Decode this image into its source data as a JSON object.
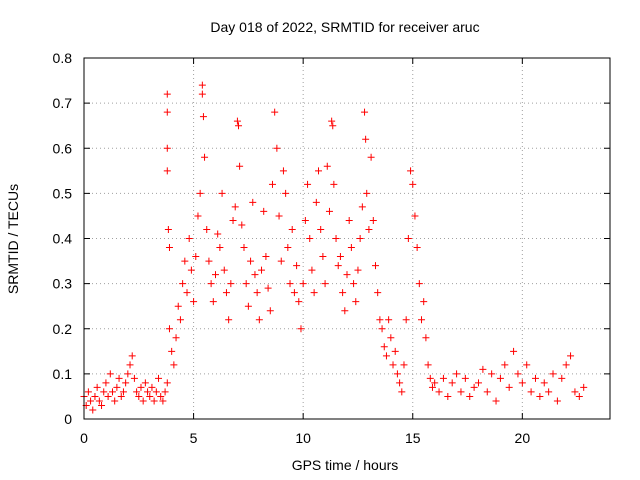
{
  "chart_data": {
    "type": "scatter",
    "title": "Day 018 of 2022, SRMTID for receiver aruc",
    "xlabel": "GPS time / hours",
    "ylabel": "SRMTID / TECUs",
    "xlim": [
      0,
      24
    ],
    "ylim": [
      0,
      0.8
    ],
    "xticks": [
      0,
      5,
      10,
      15,
      20
    ],
    "yticks": [
      0,
      0.1,
      0.2,
      0.3,
      0.4,
      0.5,
      0.6,
      0.7,
      0.8
    ],
    "xtick_labels": [
      "0",
      "5",
      "10",
      "15",
      "20"
    ],
    "ytick_labels": [
      "0",
      "0.1",
      "0.2",
      "0.3",
      "0.4",
      "0.5",
      "0.6",
      "0.7",
      "0.8"
    ],
    "grid": true,
    "marker": "+",
    "color": "#ff0000",
    "series": [
      {
        "name": "SRMTID",
        "points": [
          [
            0.0,
            0.05
          ],
          [
            0.1,
            0.03
          ],
          [
            0.2,
            0.06
          ],
          [
            0.3,
            0.04
          ],
          [
            0.4,
            0.02
          ],
          [
            0.5,
            0.05
          ],
          [
            0.6,
            0.07
          ],
          [
            0.7,
            0.04
          ],
          [
            0.8,
            0.03
          ],
          [
            0.9,
            0.06
          ],
          [
            1.0,
            0.08
          ],
          [
            1.1,
            0.05
          ],
          [
            1.2,
            0.1
          ],
          [
            1.3,
            0.06
          ],
          [
            1.4,
            0.04
          ],
          [
            1.5,
            0.07
          ],
          [
            1.6,
            0.09
          ],
          [
            1.7,
            0.05
          ],
          [
            1.8,
            0.06
          ],
          [
            1.9,
            0.08
          ],
          [
            2.0,
            0.1
          ],
          [
            2.1,
            0.12
          ],
          [
            2.2,
            0.14
          ],
          [
            2.3,
            0.09
          ],
          [
            2.4,
            0.06
          ],
          [
            2.5,
            0.05
          ],
          [
            2.6,
            0.07
          ],
          [
            2.7,
            0.04
          ],
          [
            2.8,
            0.08
          ],
          [
            2.9,
            0.06
          ],
          [
            3.0,
            0.05
          ],
          [
            3.1,
            0.07
          ],
          [
            3.2,
            0.04
          ],
          [
            3.3,
            0.06
          ],
          [
            3.4,
            0.09
          ],
          [
            3.5,
            0.05
          ],
          [
            3.6,
            0.04
          ],
          [
            3.7,
            0.06
          ],
          [
            3.8,
            0.08
          ],
          [
            3.8,
            0.55
          ],
          [
            3.8,
            0.6
          ],
          [
            3.8,
            0.72
          ],
          [
            3.8,
            0.68
          ],
          [
            3.85,
            0.42
          ],
          [
            3.9,
            0.38
          ],
          [
            3.9,
            0.2
          ],
          [
            4.0,
            0.15
          ],
          [
            4.1,
            0.12
          ],
          [
            4.2,
            0.18
          ],
          [
            4.3,
            0.25
          ],
          [
            4.4,
            0.22
          ],
          [
            4.5,
            0.3
          ],
          [
            4.6,
            0.35
          ],
          [
            4.7,
            0.28
          ],
          [
            4.8,
            0.4
          ],
          [
            4.9,
            0.33
          ],
          [
            5.0,
            0.26
          ],
          [
            5.1,
            0.36
          ],
          [
            5.2,
            0.45
          ],
          [
            5.3,
            0.5
          ],
          [
            5.4,
            0.74
          ],
          [
            5.4,
            0.72
          ],
          [
            5.45,
            0.67
          ],
          [
            5.5,
            0.58
          ],
          [
            5.6,
            0.42
          ],
          [
            5.7,
            0.35
          ],
          [
            5.8,
            0.3
          ],
          [
            5.9,
            0.26
          ],
          [
            6.0,
            0.32
          ],
          [
            6.1,
            0.41
          ],
          [
            6.2,
            0.38
          ],
          [
            6.3,
            0.5
          ],
          [
            6.4,
            0.33
          ],
          [
            6.5,
            0.28
          ],
          [
            6.6,
            0.22
          ],
          [
            6.7,
            0.3
          ],
          [
            6.8,
            0.44
          ],
          [
            6.9,
            0.47
          ],
          [
            7.0,
            0.66
          ],
          [
            7.05,
            0.65
          ],
          [
            7.1,
            0.56
          ],
          [
            7.2,
            0.43
          ],
          [
            7.3,
            0.38
          ],
          [
            7.4,
            0.3
          ],
          [
            7.5,
            0.25
          ],
          [
            7.6,
            0.35
          ],
          [
            7.7,
            0.48
          ],
          [
            7.8,
            0.32
          ],
          [
            7.9,
            0.28
          ],
          [
            8.0,
            0.22
          ],
          [
            8.1,
            0.33
          ],
          [
            8.2,
            0.46
          ],
          [
            8.3,
            0.36
          ],
          [
            8.4,
            0.29
          ],
          [
            8.5,
            0.24
          ],
          [
            8.6,
            0.52
          ],
          [
            8.7,
            0.68
          ],
          [
            8.8,
            0.6
          ],
          [
            8.9,
            0.45
          ],
          [
            9.0,
            0.35
          ],
          [
            9.1,
            0.55
          ],
          [
            9.2,
            0.5
          ],
          [
            9.3,
            0.38
          ],
          [
            9.4,
            0.3
          ],
          [
            9.5,
            0.42
          ],
          [
            9.6,
            0.28
          ],
          [
            9.7,
            0.34
          ],
          [
            9.8,
            0.26
          ],
          [
            9.9,
            0.2
          ],
          [
            10.0,
            0.3
          ],
          [
            10.1,
            0.44
          ],
          [
            10.2,
            0.52
          ],
          [
            10.3,
            0.4
          ],
          [
            10.4,
            0.33
          ],
          [
            10.5,
            0.28
          ],
          [
            10.6,
            0.48
          ],
          [
            10.7,
            0.55
          ],
          [
            10.8,
            0.42
          ],
          [
            10.9,
            0.36
          ],
          [
            11.0,
            0.3
          ],
          [
            11.1,
            0.56
          ],
          [
            11.2,
            0.46
          ],
          [
            11.3,
            0.66
          ],
          [
            11.35,
            0.65
          ],
          [
            11.4,
            0.52
          ],
          [
            11.5,
            0.4
          ],
          [
            11.6,
            0.34
          ],
          [
            11.7,
            0.36
          ],
          [
            11.8,
            0.28
          ],
          [
            11.9,
            0.24
          ],
          [
            12.0,
            0.32
          ],
          [
            12.1,
            0.44
          ],
          [
            12.2,
            0.38
          ],
          [
            12.3,
            0.3
          ],
          [
            12.4,
            0.26
          ],
          [
            12.5,
            0.33
          ],
          [
            12.6,
            0.4
          ],
          [
            12.7,
            0.47
          ],
          [
            12.8,
            0.68
          ],
          [
            12.85,
            0.62
          ],
          [
            12.9,
            0.5
          ],
          [
            13.0,
            0.42
          ],
          [
            13.1,
            0.58
          ],
          [
            13.2,
            0.44
          ],
          [
            13.3,
            0.34
          ],
          [
            13.4,
            0.28
          ],
          [
            13.5,
            0.22
          ],
          [
            13.6,
            0.2
          ],
          [
            13.7,
            0.16
          ],
          [
            13.8,
            0.14
          ],
          [
            13.9,
            0.22
          ],
          [
            14.0,
            0.18
          ],
          [
            14.1,
            0.12
          ],
          [
            14.2,
            0.15
          ],
          [
            14.3,
            0.1
          ],
          [
            14.4,
            0.08
          ],
          [
            14.5,
            0.06
          ],
          [
            14.6,
            0.12
          ],
          [
            14.7,
            0.22
          ],
          [
            14.8,
            0.4
          ],
          [
            14.9,
            0.55
          ],
          [
            15.0,
            0.52
          ],
          [
            15.1,
            0.45
          ],
          [
            15.2,
            0.38
          ],
          [
            15.3,
            0.3
          ],
          [
            15.4,
            0.22
          ],
          [
            15.5,
            0.26
          ],
          [
            15.6,
            0.18
          ],
          [
            15.7,
            0.12
          ],
          [
            15.8,
            0.09
          ],
          [
            15.9,
            0.07
          ],
          [
            16.0,
            0.08
          ],
          [
            16.2,
            0.06
          ],
          [
            16.4,
            0.09
          ],
          [
            16.6,
            0.05
          ],
          [
            16.8,
            0.08
          ],
          [
            17.0,
            0.1
          ],
          [
            17.2,
            0.06
          ],
          [
            17.4,
            0.09
          ],
          [
            17.6,
            0.05
          ],
          [
            17.8,
            0.07
          ],
          [
            18.0,
            0.08
          ],
          [
            18.2,
            0.11
          ],
          [
            18.4,
            0.06
          ],
          [
            18.6,
            0.1
          ],
          [
            18.8,
            0.04
          ],
          [
            19.0,
            0.09
          ],
          [
            19.2,
            0.12
          ],
          [
            19.4,
            0.07
          ],
          [
            19.6,
            0.15
          ],
          [
            19.8,
            0.1
          ],
          [
            20.0,
            0.08
          ],
          [
            20.2,
            0.12
          ],
          [
            20.4,
            0.06
          ],
          [
            20.6,
            0.09
          ],
          [
            20.8,
            0.05
          ],
          [
            21.0,
            0.08
          ],
          [
            21.2,
            0.06
          ],
          [
            21.4,
            0.1
          ],
          [
            21.6,
            0.04
          ],
          [
            21.8,
            0.09
          ],
          [
            22.0,
            0.12
          ],
          [
            22.2,
            0.14
          ],
          [
            22.4,
            0.06
          ],
          [
            22.6,
            0.05
          ],
          [
            22.8,
            0.07
          ]
        ]
      }
    ]
  }
}
